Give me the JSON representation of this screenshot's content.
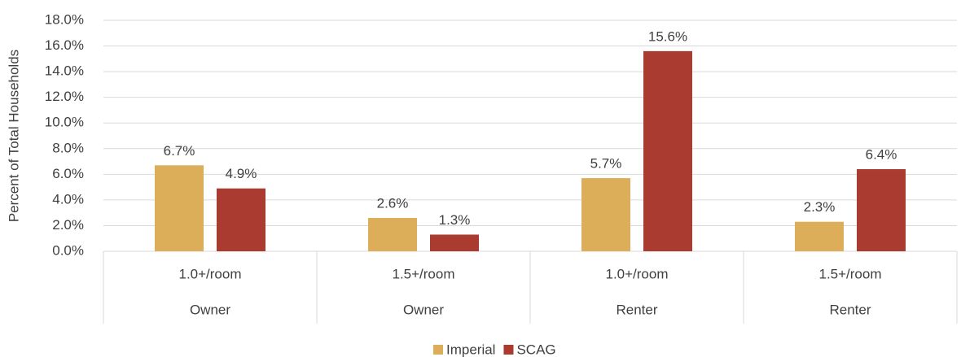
{
  "chart_data": {
    "type": "bar",
    "y_label": "Percent of Total Households",
    "categories": [
      "1.0+/room",
      "1.5+/room",
      "1.0+/room",
      "1.5+/room"
    ],
    "groups": [
      "Owner",
      "Owner",
      "Renter",
      "Renter"
    ],
    "series": [
      {
        "name": "Imperial",
        "color": "#dcae5a",
        "values": [
          6.7,
          2.6,
          5.7,
          2.3
        ],
        "value_labels": [
          "6.7%",
          "2.6%",
          "5.7%",
          "2.3%"
        ]
      },
      {
        "name": "SCAG",
        "color": "#a93b30",
        "values": [
          4.9,
          1.3,
          15.6,
          6.4
        ],
        "value_labels": [
          "4.9%",
          "1.3%",
          "15.6%",
          "6.4%"
        ]
      }
    ],
    "ylim": [
      0,
      18
    ],
    "yticks": [
      {
        "value": 0,
        "label": "0.0%"
      },
      {
        "value": 2,
        "label": "2.0%"
      },
      {
        "value": 4,
        "label": "4.0%"
      },
      {
        "value": 6,
        "label": "6.0%"
      },
      {
        "value": 8,
        "label": "8.0%"
      },
      {
        "value": 10,
        "label": "10.0%"
      },
      {
        "value": 12,
        "label": "12.0%"
      },
      {
        "value": 14,
        "label": "14.0%"
      },
      {
        "value": 16,
        "label": "16.0%"
      },
      {
        "value": 18,
        "label": "18.0%"
      }
    ],
    "grid": true,
    "legend": "bottom"
  }
}
